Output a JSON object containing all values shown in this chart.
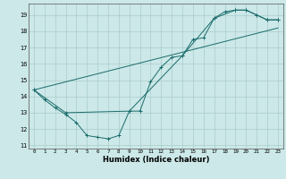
{
  "xlabel": "Humidex (Indice chaleur)",
  "background_color": "#cce8e8",
  "grid_color": "#aacccc",
  "line_color": "#1a6b6b",
  "xlim": [
    -0.5,
    23.5
  ],
  "ylim": [
    10.8,
    19.7
  ],
  "yticks": [
    11,
    12,
    13,
    14,
    15,
    16,
    17,
    18,
    19
  ],
  "xticks": [
    0,
    1,
    2,
    3,
    4,
    5,
    6,
    7,
    8,
    9,
    10,
    11,
    12,
    13,
    14,
    15,
    16,
    17,
    18,
    19,
    20,
    21,
    22,
    23
  ],
  "line1_x": [
    0,
    1,
    2,
    3,
    4,
    5,
    6,
    7,
    8,
    9,
    10,
    11,
    12,
    13,
    14,
    15,
    16,
    17,
    18,
    19,
    20,
    21,
    22,
    23
  ],
  "line1_y": [
    14.4,
    13.8,
    13.3,
    12.9,
    12.4,
    11.6,
    11.5,
    11.4,
    11.6,
    13.1,
    13.1,
    14.9,
    15.8,
    16.4,
    16.5,
    17.5,
    17.6,
    18.8,
    19.2,
    19.3,
    19.3,
    19.0,
    18.7,
    18.7
  ],
  "line2_x": [
    0,
    3,
    9,
    14,
    17,
    19,
    20,
    21,
    22,
    23
  ],
  "line2_y": [
    14.4,
    13.0,
    13.1,
    16.5,
    18.8,
    19.3,
    19.3,
    19.0,
    18.7,
    18.7
  ],
  "line3_x": [
    0,
    23
  ],
  "line3_y": [
    14.4,
    18.2
  ]
}
